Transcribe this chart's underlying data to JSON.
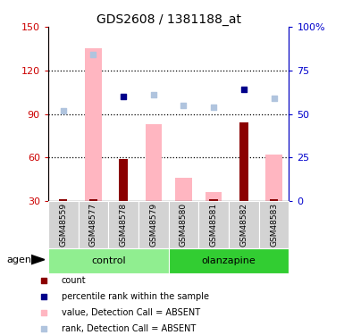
{
  "title": "GDS2608 / 1381188_at",
  "samples": [
    "GSM48559",
    "GSM48577",
    "GSM48578",
    "GSM48579",
    "GSM48580",
    "GSM48581",
    "GSM48582",
    "GSM48583"
  ],
  "ylim_left": [
    30,
    150
  ],
  "ylim_right": [
    0,
    100
  ],
  "yticks_left": [
    30,
    60,
    90,
    120,
    150
  ],
  "yticks_right": [
    0,
    25,
    50,
    75,
    100
  ],
  "yright_labels": [
    "0",
    "25",
    "50",
    "75",
    "100%"
  ],
  "count_values": [
    31,
    31,
    59,
    30,
    30,
    31,
    84,
    31
  ],
  "count_color": "#8b0000",
  "percentile_rank": [
    null,
    null,
    60,
    null,
    null,
    null,
    64,
    null
  ],
  "percentile_rank_color": "#00008b",
  "absent_value": [
    null,
    135,
    null,
    83,
    46,
    36,
    null,
    62
  ],
  "absent_value_color": "#ffb6c1",
  "absent_rank": [
    52,
    84,
    null,
    61,
    55,
    54,
    null,
    59
  ],
  "absent_rank_color": "#b0c4de",
  "background_color": "#ffffff",
  "left_axis_color": "#cc0000",
  "right_axis_color": "#0000cc",
  "sample_bg_color": "#d3d3d3",
  "group_info": [
    {
      "label": "control",
      "start": 0,
      "end": 3,
      "color": "#90ee90"
    },
    {
      "label": "olanzapine",
      "start": 4,
      "end": 7,
      "color": "#32cd32"
    }
  ],
  "legend_items": [
    {
      "color": "#8b0000",
      "label": "count"
    },
    {
      "color": "#00008b",
      "label": "percentile rank within the sample"
    },
    {
      "color": "#ffb6c1",
      "label": "value, Detection Call = ABSENT"
    },
    {
      "color": "#b0c4de",
      "label": "rank, Detection Call = ABSENT"
    }
  ]
}
